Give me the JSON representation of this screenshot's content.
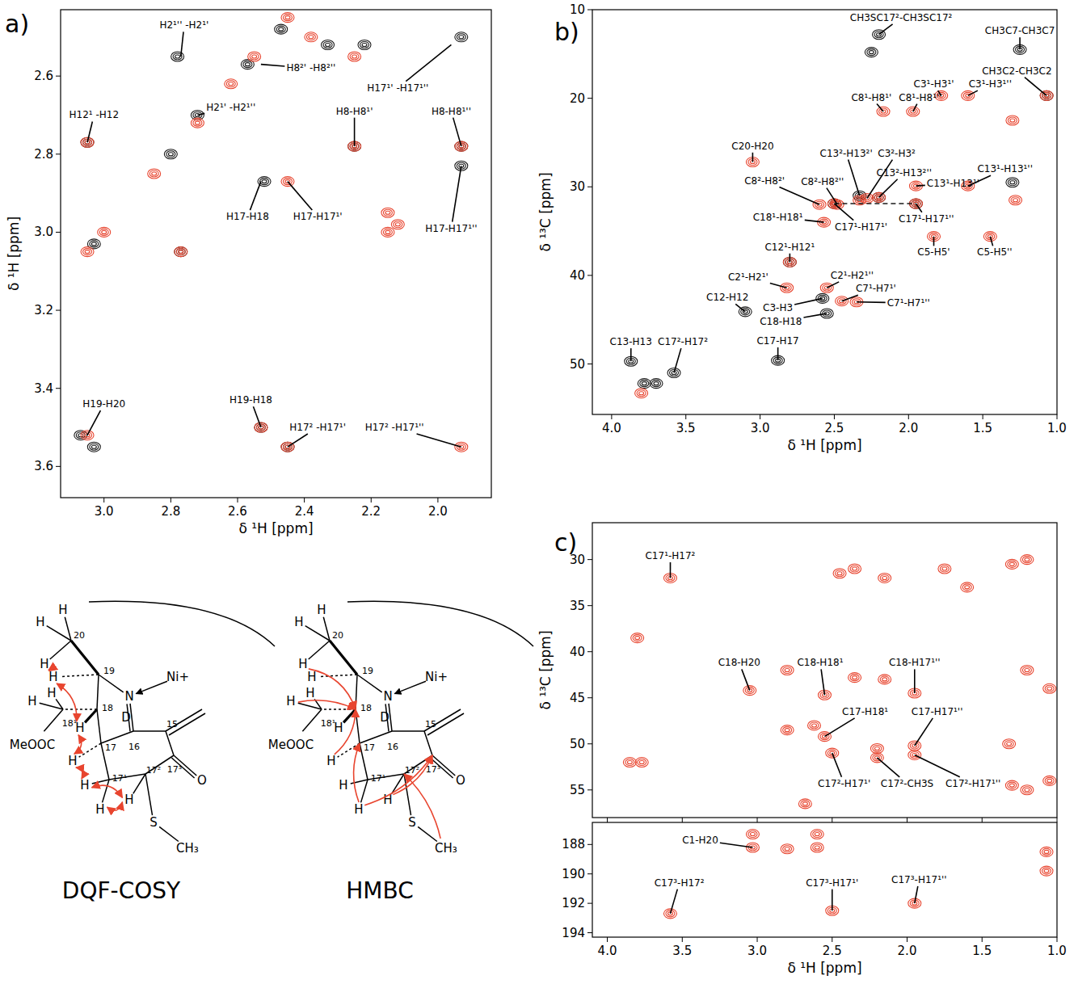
{
  "chart_data": [
    {
      "type": "scatter",
      "letter": "a)",
      "xlabel": "δ ¹H [ppm]",
      "ylabel": "δ ¹H [ppm]",
      "grid": false,
      "xlim": [
        3.13,
        1.84
      ],
      "ylim": [
        2.43,
        3.68
      ],
      "xticks": [
        {
          "value": 3,
          "label": "3.0"
        },
        2.8,
        2.6,
        2.4,
        2.2,
        {
          "value": 2,
          "label": "2.0"
        }
      ],
      "yticks": [
        2.6,
        2.8,
        {
          "value": 3,
          "label": "3.0"
        },
        3.2,
        3.4,
        3.6
      ],
      "series": [
        {
          "color": "#1a1a1a",
          "marker": "contour",
          "x": [
            3.05,
            3.07,
            3.03,
            2.53,
            2.52,
            1.93,
            1.93,
            2.25,
            2.77,
            2.78,
            2.72,
            2.57,
            2.47,
            3.03,
            2.8,
            1.93,
            2.33,
            2.22,
            2.45
          ],
          "values": [
            2.77,
            3.52,
            3.55,
            3.5,
            2.87,
            2.78,
            2.83,
            2.78,
            3.05,
            2.55,
            2.7,
            2.57,
            2.48,
            3.03,
            2.8,
            2.5,
            2.52,
            2.52,
            3.55
          ]
        },
        {
          "color": "#e8452f",
          "marker": "contour",
          "x": [
            3.05,
            3.05,
            2.53,
            2.45,
            1.93,
            2.45,
            2.25,
            1.93,
            2.38,
            2.25,
            2.15,
            2.15,
            3.05,
            3.0,
            2.85,
            2.72,
            2.62,
            2.55,
            2.45,
            2.77,
            2.12
          ],
          "values": [
            2.77,
            3.52,
            3.5,
            3.55,
            3.55,
            2.87,
            2.78,
            2.78,
            2.5,
            2.55,
            2.95,
            3.0,
            3.05,
            3.0,
            2.85,
            2.72,
            2.62,
            2.55,
            2.45,
            3.05,
            2.98
          ]
        }
      ],
      "annotations": [
        {
          "text": "H2¹'' -H2¹'",
          "x": 2.77,
          "y": 2.55,
          "text_x": 2.76,
          "text_y": 2.47
        },
        {
          "text": "H12¹ -H12",
          "x": 3.05,
          "y": 2.77,
          "text_x": 3.03,
          "text_y": 2.7
        },
        {
          "text": "H8²' -H8²''",
          "x": 2.53,
          "y": 2.57,
          "text_x": 2.38,
          "text_y": 2.58
        },
        {
          "text": "H2¹' -H2¹''",
          "x": 2.72,
          "y": 2.7,
          "text_x": 2.62,
          "text_y": 2.68
        },
        {
          "text": "H8-H8¹'",
          "x": 2.25,
          "y": 2.78,
          "text_x": 2.25,
          "text_y": 2.69
        },
        {
          "text": "H8-H8¹''",
          "x": 1.93,
          "y": 2.78,
          "text_x": 1.96,
          "text_y": 2.69
        },
        {
          "text": "H17¹' -H17¹''",
          "x": 1.96,
          "y": 2.52,
          "text_x": 2.12,
          "text_y": 2.63
        },
        {
          "text": "H17-H18",
          "x": 2.53,
          "y": 2.87,
          "text_x": 2.57,
          "text_y": 2.96
        },
        {
          "text": "H17-H17¹'",
          "x": 2.45,
          "y": 2.87,
          "text_x": 2.36,
          "text_y": 2.96
        },
        {
          "text": "H17-H17¹''",
          "x": 1.93,
          "y": 2.83,
          "text_x": 1.96,
          "text_y": 2.99
        },
        {
          "text": "H19-H20",
          "x": 3.05,
          "y": 3.52,
          "text_x": 3.0,
          "text_y": 3.44
        },
        {
          "text": "H19-H18",
          "x": 2.53,
          "y": 3.5,
          "text_x": 2.56,
          "text_y": 3.43
        },
        {
          "text": "H17² -H17¹'",
          "x": 2.45,
          "y": 3.55,
          "text_x": 2.36,
          "text_y": 3.5
        },
        {
          "text": "H17² -H17¹''",
          "x": 1.93,
          "y": 3.55,
          "text_x": 2.13,
          "text_y": 3.5
        }
      ]
    },
    {
      "type": "scatter",
      "letter": "b)",
      "xlabel": "δ ¹H [ppm]",
      "ylabel": "δ ¹³C [ppm]",
      "grid": false,
      "xlim": [
        4.13,
        1.0
      ],
      "ylim": [
        10,
        55.7
      ],
      "xticks": [
        {
          "value": 4,
          "label": "4.0"
        },
        3.5,
        {
          "value": 3,
          "label": "3.0"
        },
        2.5,
        {
          "value": 2,
          "label": "2.0"
        },
        1.5,
        {
          "value": 1,
          "label": "1.0"
        }
      ],
      "yticks": [
        10,
        20,
        30,
        40,
        50
      ],
      "series": [
        {
          "color": "#1a1a1a",
          "marker": "contour",
          "x": [
            2.2,
            2.25,
            1.25,
            1.07,
            3.1,
            3.87,
            3.58,
            3.78,
            3.7,
            2.88,
            2.58,
            2.55,
            2.33,
            2.2,
            2.5,
            1.95,
            2.8,
            1.3
          ],
          "values": [
            12.8,
            14.8,
            14.5,
            19.7,
            44.1,
            49.7,
            51,
            52.2,
            52.2,
            49.6,
            42.6,
            44.3,
            31,
            31.2,
            31.9,
            31.9,
            38.5,
            29.5
          ]
        },
        {
          "color": "#e8452f",
          "marker": "contour",
          "x": [
            1.78,
            1.6,
            2.17,
            1.97,
            3.05,
            2.6,
            2.48,
            2.28,
            2.33,
            2.2,
            1.95,
            1.6,
            2.57,
            2.5,
            1.95,
            1.83,
            1.45,
            2.8,
            2.82,
            2.55,
            2.45,
            2.35,
            1.3,
            1.28,
            1.07,
            3.8
          ],
          "values": [
            19.7,
            19.7,
            21.5,
            21.5,
            27.2,
            32,
            32,
            31.3,
            31.5,
            31.2,
            29.9,
            29.9,
            34,
            31.9,
            31.9,
            35.6,
            35.6,
            38.5,
            41.4,
            41.4,
            42.9,
            43,
            22.5,
            31.5,
            19.7,
            53.3
          ]
        },
        {
          "type": "line",
          "line_style": "dashed",
          "color": "#1a1a1a",
          "x": [
            2.5,
            1.95
          ],
          "values": [
            31.9,
            31.9
          ]
        }
      ],
      "annotations": [
        {
          "text": "CH3SC17²-CH3SC17²",
          "x": 2.2,
          "y": 12.8,
          "text_x": 2.05,
          "text_y": 10.9
        },
        {
          "text": "CH3C7-CH3C7",
          "x": 1.25,
          "y": 14.5,
          "text_x": 1.25,
          "text_y": 12.4
        },
        {
          "text": "CH3C2-CH3C2",
          "x": 1.07,
          "y": 19.7,
          "text_x": 1.27,
          "text_y": 16.9
        },
        {
          "text": "C3¹-H3¹'",
          "x": 1.78,
          "y": 19.7,
          "text_x": 1.83,
          "text_y": 18.4
        },
        {
          "text": "C3¹-H3¹''",
          "x": 1.6,
          "y": 19.7,
          "text_x": 1.45,
          "text_y": 18.4
        },
        {
          "text": "C8¹-H8¹'",
          "x": 2.17,
          "y": 21.5,
          "text_x": 2.25,
          "text_y": 19.9
        },
        {
          "text": "C8¹-H8¹''",
          "x": 1.97,
          "y": 21.5,
          "text_x": 1.92,
          "text_y": 19.9
        },
        {
          "text": "C20-H20",
          "x": 3.05,
          "y": 27.2,
          "text_x": 3.05,
          "text_y": 25.4
        },
        {
          "text": "C13²-H13²'",
          "x": 2.33,
          "y": 31,
          "text_x": 2.42,
          "text_y": 26.2
        },
        {
          "text": "C3²-H3²",
          "x": 2.28,
          "y": 31.3,
          "text_x": 2.08,
          "text_y": 26.2
        },
        {
          "text": "C8²-H8²'",
          "x": 2.6,
          "y": 32,
          "text_x": 2.97,
          "text_y": 29.3
        },
        {
          "text": "C8²-H8²''",
          "x": 2.48,
          "y": 32,
          "text_x": 2.58,
          "text_y": 29.4
        },
        {
          "text": "C13²-H13²''",
          "x": 2.2,
          "y": 31.2,
          "text_x": 2.03,
          "text_y": 28.4
        },
        {
          "text": "C13¹-H13¹'",
          "x": 1.95,
          "y": 29.9,
          "text_x": 1.7,
          "text_y": 29.6
        },
        {
          "text": "C13¹-H13¹''",
          "x": 1.6,
          "y": 29.9,
          "text_x": 1.35,
          "text_y": 28.0
        },
        {
          "text": "C18¹-H18¹",
          "x": 2.57,
          "y": 34,
          "text_x": 2.88,
          "text_y": 33.4
        },
        {
          "text": "C17¹-H17¹'",
          "x": 2.5,
          "y": 31.9,
          "text_x": 2.32,
          "text_y": 34.5
        },
        {
          "text": "C17¹-H17¹''",
          "x": 1.95,
          "y": 31.9,
          "text_x": 1.88,
          "text_y": 33.6
        },
        {
          "text": "C5-H5'",
          "x": 1.83,
          "y": 35.6,
          "text_x": 1.83,
          "text_y": 37.4
        },
        {
          "text": "C5-H5''",
          "x": 1.45,
          "y": 35.6,
          "text_x": 1.42,
          "text_y": 37.4
        },
        {
          "text": "C12¹-H12¹",
          "x": 2.8,
          "y": 38.5,
          "text_x": 2.8,
          "text_y": 36.8
        },
        {
          "text": "C2¹-H2¹'",
          "x": 2.82,
          "y": 41.4,
          "text_x": 3.08,
          "text_y": 40.2
        },
        {
          "text": "C2¹-H2¹''",
          "x": 2.55,
          "y": 41.4,
          "text_x": 2.38,
          "text_y": 40.0
        },
        {
          "text": "C7¹-H7¹'",
          "x": 2.45,
          "y": 42.9,
          "text_x": 2.22,
          "text_y": 41.5
        },
        {
          "text": "C7¹-H7¹''",
          "x": 2.35,
          "y": 43,
          "text_x": 2.0,
          "text_y": 43.1
        },
        {
          "text": "C12-H12",
          "x": 3.1,
          "y": 44.1,
          "text_x": 3.22,
          "text_y": 42.5
        },
        {
          "text": "C3-H3",
          "x": 2.58,
          "y": 42.6,
          "text_x": 2.88,
          "text_y": 43.7
        },
        {
          "text": "C18-H18",
          "x": 2.55,
          "y": 44.3,
          "text_x": 2.86,
          "text_y": 45.2
        },
        {
          "text": "C13-H13",
          "x": 3.87,
          "y": 49.7,
          "text_x": 3.87,
          "text_y": 47.5
        },
        {
          "text": "C17²-H17²",
          "x": 3.58,
          "y": 51,
          "text_x": 3.52,
          "text_y": 47.5
        },
        {
          "text": "C17-H17",
          "x": 2.88,
          "y": 49.6,
          "text_x": 2.88,
          "text_y": 47.4
        }
      ]
    },
    {
      "type": "scatter",
      "letter": "c)",
      "ylabel": "δ ¹³C [ppm]",
      "grid": false,
      "tick_labels": "y",
      "xlim": [
        4.1,
        1.0
      ],
      "ylim": [
        26,
        58
      ],
      "xticks": [
        {
          "value": 4,
          "label": "4.0"
        },
        3.5,
        {
          "value": 3,
          "label": "3.0"
        },
        2.5,
        {
          "value": 2,
          "label": "2.0"
        },
        1.5,
        {
          "value": 1,
          "label": "1.0"
        }
      ],
      "yticks": [
        30,
        35,
        40,
        45,
        50,
        55
      ],
      "series": [
        {
          "color": "#e8452f",
          "marker": "contour",
          "x": [
            3.58,
            3.05,
            2.55,
            1.95,
            2.55,
            1.95,
            2.5,
            2.2,
            1.95,
            3.85,
            3.77,
            3.8,
            2.8,
            2.68,
            2.8,
            2.62,
            2.35,
            2.15,
            1.2,
            1.2,
            1.3,
            1.2,
            1.05,
            1.05,
            1.3,
            1.32,
            2.35,
            2.15,
            1.75,
            1.6,
            2.45,
            2.2
          ],
          "values": [
            32,
            44.2,
            44.7,
            44.5,
            49.2,
            50.2,
            51,
            51.5,
            51.2,
            52,
            52,
            38.5,
            42,
            56.5,
            48.5,
            48,
            42.8,
            43,
            42,
            30,
            30.5,
            55,
            44,
            54,
            54.5,
            50,
            31,
            32,
            31,
            33,
            31.5,
            50.5
          ]
        }
      ],
      "annotations": [
        {
          "text": "C17¹-H17²",
          "x": 3.58,
          "y": 32,
          "text_x": 3.58,
          "text_y": 29.6
        },
        {
          "text": "C18-H20",
          "x": 3.05,
          "y": 44.2,
          "text_x": 3.12,
          "text_y": 41.2
        },
        {
          "text": "C18-H18¹",
          "x": 2.55,
          "y": 44.7,
          "text_x": 2.58,
          "text_y": 41.2
        },
        {
          "text": "C18-H17¹''",
          "x": 1.95,
          "y": 44.5,
          "text_x": 1.95,
          "text_y": 41.2
        },
        {
          "text": "C17-H18¹",
          "x": 2.55,
          "y": 49.2,
          "text_x": 2.28,
          "text_y": 46.5
        },
        {
          "text": "C17-H17¹''",
          "x": 1.95,
          "y": 50.2,
          "text_x": 1.8,
          "text_y": 46.5
        },
        {
          "text": "C17²-H17¹'",
          "x": 2.5,
          "y": 51,
          "text_x": 2.42,
          "text_y": 54.3
        },
        {
          "text": "C17²-CH3S",
          "x": 2.2,
          "y": 51.5,
          "text_x": 2.0,
          "text_y": 54.3
        },
        {
          "text": "C17²-H17¹''",
          "x": 1.95,
          "y": 51.2,
          "text_x": 1.56,
          "text_y": 54.3
        }
      ]
    },
    {
      "type": "scatter",
      "xlabel": "δ ¹H [ppm]",
      "grid": false,
      "xlim": [
        4.1,
        1.0
      ],
      "ylim": [
        186.5,
        194.3
      ],
      "xticks": [
        {
          "value": 4,
          "label": "4.0"
        },
        3.5,
        {
          "value": 3,
          "label": "3.0"
        },
        2.5,
        {
          "value": 2,
          "label": "2.0"
        },
        1.5,
        {
          "value": 1,
          "label": "1.0"
        }
      ],
      "yticks": [
        188,
        190,
        192,
        194
      ],
      "series": [
        {
          "color": "#e8452f",
          "marker": "contour",
          "x": [
            3.03,
            3.58,
            2.5,
            1.95,
            2.6,
            2.8,
            1.07,
            1.07,
            3.03,
            2.6
          ],
          "values": [
            188.2,
            192.7,
            192.5,
            192,
            188.2,
            188.3,
            188.5,
            189.8,
            187.3,
            187.3
          ]
        }
      ],
      "annotations": [
        {
          "text": "C1-H20",
          "x": 3.03,
          "y": 188.2,
          "text_x": 3.38,
          "text_y": 187.7
        },
        {
          "text": "C17³-H17²",
          "x": 3.58,
          "y": 192.7,
          "text_x": 3.52,
          "text_y": 190.6
        },
        {
          "text": "C17³-H17¹'",
          "x": 2.5,
          "y": 192.5,
          "text_x": 2.5,
          "text_y": 190.6
        },
        {
          "text": "C17³-H17¹''",
          "x": 1.95,
          "y": 192,
          "text_x": 1.92,
          "text_y": 190.4
        }
      ]
    }
  ],
  "structures": [
    {
      "caption": "DQF-COSY",
      "atoms": [
        "H",
        "H",
        "H",
        "20",
        "H",
        "19",
        "N",
        "Ni+",
        "H",
        "H",
        "18¹",
        "18",
        "H",
        "D",
        "16",
        "15",
        "MeOOC",
        "17",
        "H",
        "17¹",
        "H",
        "H",
        "17²",
        "H",
        "17³",
        "O",
        "S",
        "CH₃"
      ]
    },
    {
      "caption": "HMBC",
      "atoms": [
        "H",
        "H",
        "H",
        "20",
        "H",
        "19",
        "N",
        "Ni+",
        "H",
        "H",
        "18¹",
        "18",
        "H",
        "D",
        "16",
        "15",
        "MeOOC",
        "17",
        "H",
        "17¹",
        "H",
        "H",
        "17²",
        "H",
        "17³",
        "O",
        "S",
        "CH₃"
      ]
    }
  ]
}
